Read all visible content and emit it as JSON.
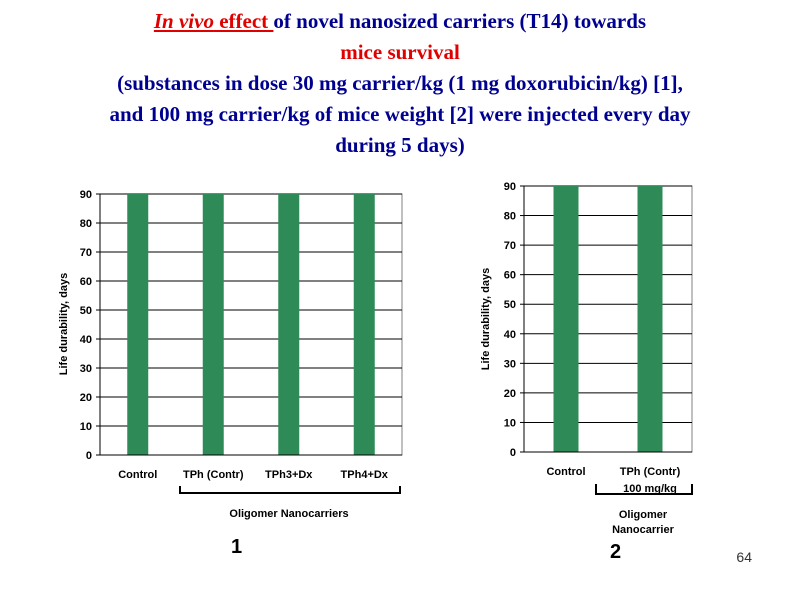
{
  "title": {
    "line1_part1": "In vivo",
    "line1_part2": " effect ",
    "line1_part3": "of novel  nanosized carriers (T14) towards",
    "line2": "mice survival",
    "line3": "(substances in dose 30 mg carrier/kg (1 mg doxorubicin/kg) [1],",
    "line4": "and 100 mg carrier/kg of mice weight [2] were injected every day",
    "line5": "during 5 days)"
  },
  "colors": {
    "bar": "#2e8b57",
    "title_red": "#e00000",
    "title_navy": "#000090"
  },
  "chart_data": [
    {
      "type": "bar",
      "categories": [
        "Control",
        "TPh (Contr)",
        "TPh3+Dx",
        "TPh4+Dx"
      ],
      "values": [
        90,
        90,
        90,
        90
      ],
      "ylabel": "Life durability, days",
      "ylim": [
        0,
        90
      ],
      "yticks": [
        0,
        10,
        20,
        30,
        40,
        50,
        60,
        70,
        80,
        90
      ],
      "grid": true,
      "group_label": "Oligomer Nanocarriers",
      "panel_label": "1"
    },
    {
      "type": "bar",
      "categories": [
        "Control",
        "TPh (Contr)"
      ],
      "values": [
        90,
        90
      ],
      "ylabel": "Life durability, days",
      "ylim": [
        0,
        90
      ],
      "yticks": [
        0,
        10,
        20,
        30,
        40,
        50,
        60,
        70,
        80,
        90
      ],
      "grid": true,
      "dose_label": "100 mg/kg",
      "group_label_line1": "Oligomer",
      "group_label_line2": "Nanocarrier",
      "panel_label": "2"
    }
  ],
  "slide_number": "64"
}
